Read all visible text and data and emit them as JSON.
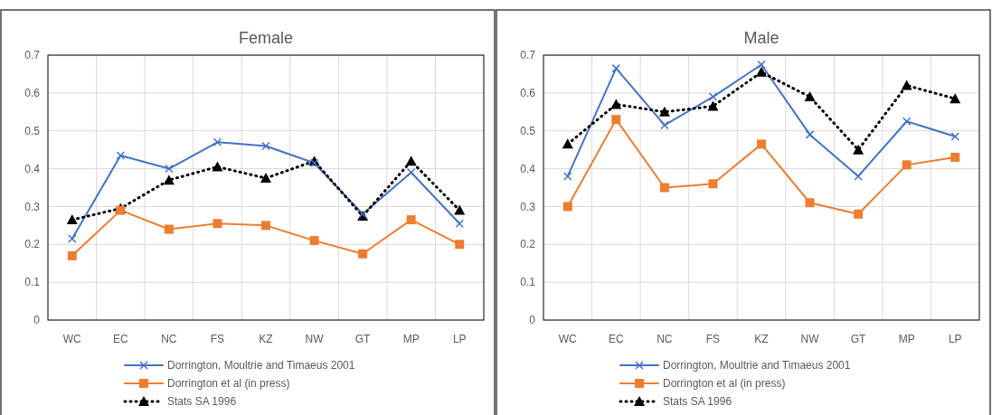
{
  "chart_data": [
    {
      "type": "line",
      "title": "Female",
      "categories": [
        "WC",
        "EC",
        "NC",
        "FS",
        "KZ",
        "NW",
        "GT",
        "MP",
        "LP"
      ],
      "ylim": [
        0,
        0.7
      ],
      "yticks": [
        0,
        0.1,
        0.2,
        0.3,
        0.4,
        0.5,
        0.6,
        0.7
      ],
      "grid": true,
      "legend": "bottom",
      "series": [
        {
          "name": "Dorrington, Moultrie and Timaeus 2001",
          "color": "#4472c4",
          "marker": "cross",
          "line_style": "solid",
          "values": [
            0.215,
            0.435,
            0.4,
            0.47,
            0.46,
            0.415,
            0.28,
            0.39,
            0.255
          ]
        },
        {
          "name": "Dorrington et al (in press)",
          "color": "#ed7d31",
          "marker": "square",
          "line_style": "solid",
          "values": [
            0.17,
            0.29,
            0.24,
            0.255,
            0.25,
            0.21,
            0.175,
            0.265,
            0.2
          ]
        },
        {
          "name": "Stats SA 1996",
          "color": "#000000",
          "marker": "triangle",
          "line_style": "dotted",
          "values": [
            0.265,
            0.295,
            0.37,
            0.405,
            0.375,
            0.42,
            0.275,
            0.42,
            0.29
          ]
        }
      ]
    },
    {
      "type": "line",
      "title": "Male",
      "categories": [
        "WC",
        "EC",
        "NC",
        "FS",
        "KZ",
        "NW",
        "GT",
        "MP",
        "LP"
      ],
      "ylim": [
        0,
        0.7
      ],
      "yticks": [
        0,
        0.1,
        0.2,
        0.3,
        0.4,
        0.5,
        0.6,
        0.7
      ],
      "grid": true,
      "legend": "bottom",
      "series": [
        {
          "name": "Dorrington, Moultrie and Timaeus 2001",
          "color": "#4472c4",
          "marker": "cross",
          "line_style": "solid",
          "values": [
            0.38,
            0.665,
            0.515,
            0.59,
            0.675,
            0.49,
            0.38,
            0.525,
            0.485
          ]
        },
        {
          "name": "Dorrington et al (in press)",
          "color": "#ed7d31",
          "marker": "square",
          "line_style": "solid",
          "values": [
            0.3,
            0.53,
            0.35,
            0.36,
            0.465,
            0.31,
            0.28,
            0.41,
            0.43
          ]
        },
        {
          "name": "Stats SA 1996",
          "color": "#000000",
          "marker": "triangle",
          "line_style": "dotted",
          "values": [
            0.465,
            0.57,
            0.55,
            0.565,
            0.655,
            0.59,
            0.45,
            0.62,
            0.585
          ]
        }
      ]
    }
  ]
}
